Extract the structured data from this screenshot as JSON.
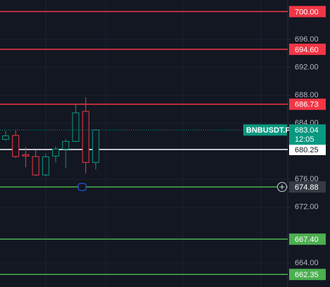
{
  "chart_data": {
    "type": "candlestick",
    "open": [
      681.7,
      682.26,
      679.5,
      679.23,
      676.6,
      679.3,
      680.3,
      681.4,
      685.7,
      678.4
    ],
    "high": [
      682.9,
      682.97,
      680.6,
      680.2,
      679.6,
      680.7,
      681.7,
      686.7,
      687.7,
      683.1
    ],
    "low": [
      681.5,
      679.03,
      677.7,
      676.4,
      676.4,
      678.4,
      677.6,
      681.3,
      676.8,
      677.4
    ],
    "close": [
      682.2,
      679.23,
      679.3,
      676.6,
      679.2,
      680.3,
      681.4,
      685.5,
      678.4,
      683.04
    ],
    "up_color": "#089981",
    "down_color": "#f23645",
    "ylim": [
      660.55,
      701.66
    ],
    "yticks": [
      {
        "value": 664,
        "label": "664.00"
      },
      {
        "value": 672,
        "label": "672.00"
      },
      {
        "value": 676,
        "label": "676.00"
      },
      {
        "value": 684,
        "label": "684.00"
      },
      {
        "value": 688,
        "label": "688.00"
      },
      {
        "value": 692,
        "label": "692.00"
      },
      {
        "value": 696,
        "label": "696.00"
      }
    ],
    "grid": true,
    "price_lines": [
      {
        "value": 700,
        "label": "700.00",
        "color": "#f23645"
      },
      {
        "value": 694.6,
        "label": "694.60",
        "color": "#f23645"
      },
      {
        "value": 686.73,
        "label": "686.73",
        "color": "#f23645"
      },
      {
        "value": 680.25,
        "label": "680.25",
        "color": "#ffffff"
      },
      {
        "value": 674.88,
        "label": "674.88",
        "color": "#4caf50"
      },
      {
        "value": 667.4,
        "label": "667.40",
        "color": "#4caf50"
      },
      {
        "value": 662.35,
        "label": "662.35",
        "color": "#4caf50"
      }
    ],
    "current_price": {
      "symbol": "BNBUSDT.P",
      "value": 683.04,
      "label": "683.04",
      "countdown": "12:05",
      "color": "#089981"
    }
  }
}
